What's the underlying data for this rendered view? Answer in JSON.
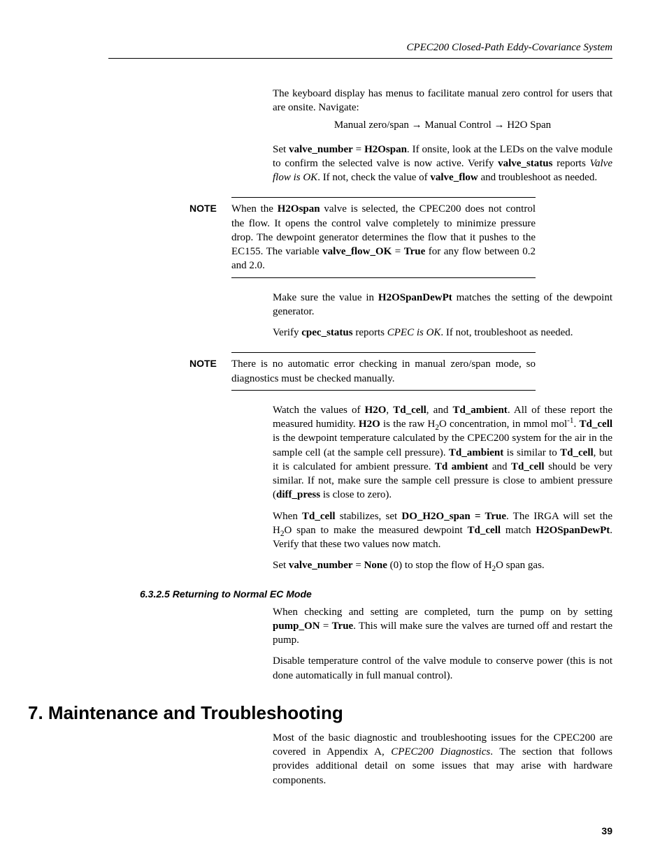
{
  "header": {
    "title": "CPEC200 Closed-Path Eddy-Covariance System"
  },
  "p1": "The keyboard display has menus to facilitate manual zero control for users that are onsite.  Navigate:",
  "nav": "Manual zero/span → Manual Control → H2O Span",
  "p2_pre": "Set ",
  "p2_b1": "valve_number",
  "p2_eq": " = ",
  "p2_b2": "H2Ospan",
  "p2_mid1": ".  If onsite, look at the LEDs on the valve module to confirm the selected valve is now active.  Verify ",
  "p2_b3": "valve_status",
  "p2_mid2": " reports ",
  "p2_i1": "Valve flow is OK",
  "p2_mid3": ".  If not, check the value of ",
  "p2_b4": "valve_flow",
  "p2_end": " and troubleshoot as needed.",
  "note1": {
    "label": "NOTE",
    "t1": "When the ",
    "b1": "H2Ospan",
    "t2": " valve is selected, the CPEC200 does not control the flow. It opens the control valve completely to minimize pressure drop. The dewpoint generator determines the flow that it pushes to the EC155. The variable ",
    "b2": "valve_flow_OK",
    "t3": " = ",
    "b3": "True",
    "t4": " for any flow between 0.2 and 2.0."
  },
  "p3_pre": "Make sure the value in ",
  "p3_b1": "H2OSpanDewPt",
  "p3_end": " matches the setting of the dewpoint generator.",
  "p4_pre": "Verify ",
  "p4_b1": "cpec_status",
  "p4_mid": " reports ",
  "p4_i1": "CPEC is OK",
  "p4_end": ".  If not, troubleshoot as needed.",
  "note2": {
    "label": "NOTE",
    "text": "There is no automatic error checking in manual zero/span mode, so diagnostics must be checked manually."
  },
  "p5_1": "Watch the values of ",
  "p5_b1": "H2O",
  "p5_2": ", ",
  "p5_b2": "Td_cell",
  "p5_3": ", and ",
  "p5_b3": "Td_ambient",
  "p5_4": ".  All of these report the measured humidity.  ",
  "p5_b4": "H2O",
  "p5_5": " is the raw H",
  "p5_6": "O concentration, in mmol mol",
  "p5_7": ".  ",
  "p5_b5": "Td_cell",
  "p5_8": " is the dewpoint temperature calculated by the CPEC200 system for the air in the sample cell (at the sample cell pressure).  ",
  "p5_b6": "Td_ambient",
  "p5_9": " is similar to ",
  "p5_b7": "Td_cell",
  "p5_10": ", but it is calculated for ambient pressure.  ",
  "p5_b8": "Td ambient",
  "p5_11": " and ",
  "p5_b9": "Td_cell",
  "p5_12": " should be very similar.  If not, make sure the sample cell pressure is close to ambient pressure (",
  "p5_b10": "diff_press",
  "p5_13": " is close to zero).",
  "p6_1": "When ",
  "p6_b1": "Td_cell",
  "p6_2": " stabilizes, set ",
  "p6_b2": "DO_H2O_span = True",
  "p6_3": ".  The IRGA will set the H",
  "p6_4": "O span to make the measured dewpoint ",
  "p6_b3": "Td_cell",
  "p6_5": " match ",
  "p6_b4": "H2OSpanDewPt",
  "p6_6": ".  Verify that these two values now match.",
  "p7_1": "Set ",
  "p7_b1": "valve_number",
  "p7_2": " = ",
  "p7_b2": "None",
  "p7_3": " (0) to stop the flow of H",
  "p7_4": "O span gas.",
  "subheading": "6.3.2.5  Returning to Normal EC Mode",
  "p8_1": "When checking and setting are completed, turn the pump on by setting ",
  "p8_b1": "pump_ON",
  "p8_2": " = ",
  "p8_b2": "True",
  "p8_3": ".  This will make sure the valves are turned off and restart the pump.",
  "p9": "Disable temperature control of the valve module to conserve power (this is not done automatically in full manual control).",
  "mainheading": "7.    Maintenance and Troubleshooting",
  "p10_1": "Most of the basic diagnostic and troubleshooting issues for the CPEC200 are covered in Appendix A, ",
  "p10_i1": "CPEC200 Diagnostics",
  "p10_2": ".  The section that follows provides additional detail on some issues that may arise with hardware components.",
  "pagenum": "39"
}
